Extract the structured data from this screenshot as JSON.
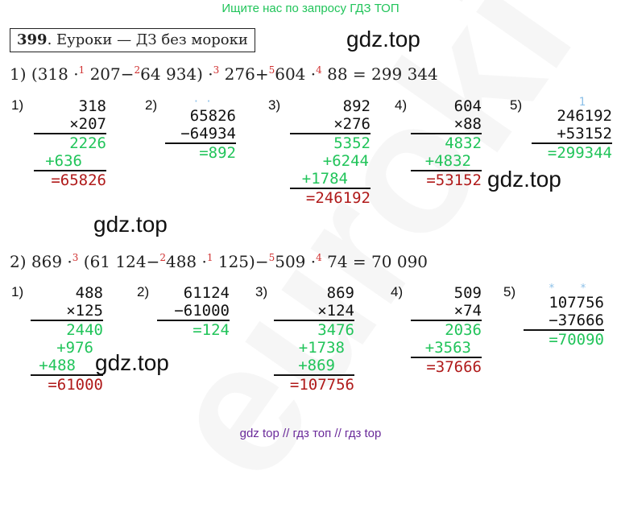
{
  "banner": "Ищите нас по запросу ГДЗ ТОП",
  "title": {
    "number": "399",
    "text": ". Еуроки — ДЗ без мороки"
  },
  "watermark": "gdz.top",
  "bg_watermark": "euroki",
  "footer": "gdz top  //  гдз топ  //  гдз top",
  "expr1": {
    "p1": "1) (318 ·",
    "s1": "1",
    "p2": " 207−",
    "s2": "2",
    "p3": "64 934) ·",
    "s3": "3",
    "p4": " 276+",
    "s4": "5",
    "p5": "604 ·",
    "s5": "4",
    "p6": " 88 = 299 344"
  },
  "expr2": {
    "p1": "2) 869 ·",
    "s1": "3",
    "p2": " (61 124−",
    "s2": "2",
    "p3": "488 ·",
    "s3": "1",
    "p4": " 125)−",
    "s4": "5",
    "p5": "509 ·",
    "s5": "4",
    "p6": " 74 = 70 090"
  },
  "row1": [
    {
      "label": "1)",
      "marks": "",
      "lines": [
        "318",
        "×207"
      ],
      "partials": [
        "2226",
        "+636"
      ],
      "result": "=65826"
    },
    {
      "label": "2)",
      "marks": "· ·",
      "lines": [
        "65826",
        "−64934"
      ],
      "partials": [],
      "result": "=892"
    },
    {
      "label": "3)",
      "marks": "",
      "lines": [
        "892",
        "×276"
      ],
      "partials": [
        "5352",
        "+6244",
        "+1784"
      ],
      "result": "=246192"
    },
    {
      "label": "4)",
      "marks": "",
      "lines": [
        "604",
        "×88"
      ],
      "partials": [
        "4832",
        "+4832"
      ],
      "result": "=53152"
    },
    {
      "label": "5)",
      "marks": "1",
      "lines": [
        "246192",
        "+53152"
      ],
      "partials": [],
      "result": "=299344"
    }
  ],
  "row2": [
    {
      "label": "1)",
      "marks": "",
      "lines": [
        "488",
        "×125"
      ],
      "partials": [
        "2440",
        "+976",
        "+488"
      ],
      "result": "=61000"
    },
    {
      "label": "2)",
      "marks": "",
      "lines": [
        "61124",
        "−61000"
      ],
      "partials": [],
      "result": "=124"
    },
    {
      "label": "3)",
      "marks": "",
      "lines": [
        "869",
        "×124"
      ],
      "partials": [
        "3476",
        "+1738",
        "+869"
      ],
      "result": "=107756"
    },
    {
      "label": "4)",
      "marks": "",
      "lines": [
        "509",
        "×74"
      ],
      "partials": [
        "2036",
        "+3563"
      ],
      "result": "=37666"
    },
    {
      "label": "5)",
      "marks": "*    *",
      "lines": [
        "107756",
        "−37666"
      ],
      "partials": [],
      "result": "=70090"
    }
  ]
}
